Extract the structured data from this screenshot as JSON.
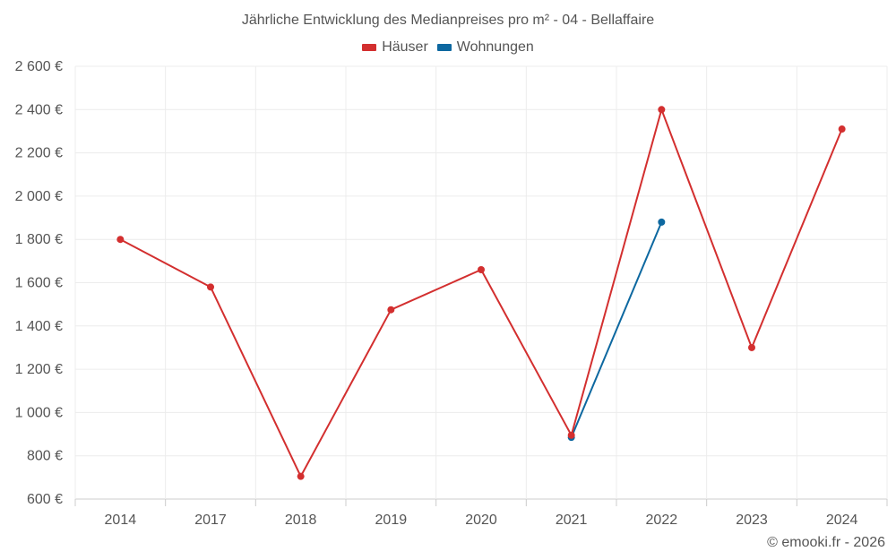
{
  "chart_data": {
    "type": "line",
    "title": "Jährliche Entwicklung des Medianpreises pro m² - 04 - Bellaffaire",
    "categories": [
      "2014",
      "2017",
      "2018",
      "2019",
      "2020",
      "2021",
      "2022",
      "2023",
      "2024"
    ],
    "series": [
      {
        "name": "Häuser",
        "color": "#d32f2f",
        "values": [
          1800,
          1580,
          705,
          1475,
          1660,
          895,
          2400,
          1300,
          2310
        ]
      },
      {
        "name": "Wohnungen",
        "color": "#0d68a0",
        "values": [
          null,
          null,
          null,
          null,
          null,
          885,
          1880,
          null,
          null
        ]
      }
    ],
    "ylim": [
      600,
      2600
    ],
    "yticks": [
      600,
      800,
      1000,
      1200,
      1400,
      1600,
      1800,
      2000,
      2200,
      2400,
      2600
    ],
    "ytick_labels": [
      "600 €",
      "800 €",
      "1 000 €",
      "1 200 €",
      "1 400 €",
      "1 600 €",
      "1 800 €",
      "2 000 €",
      "2 200 €",
      "2 400 €",
      "2 600 €"
    ],
    "xlabel": "",
    "ylabel": "",
    "grid": true,
    "legend_position": "top-center"
  },
  "footer": {
    "credit": "© emooki.fr - 2026"
  }
}
